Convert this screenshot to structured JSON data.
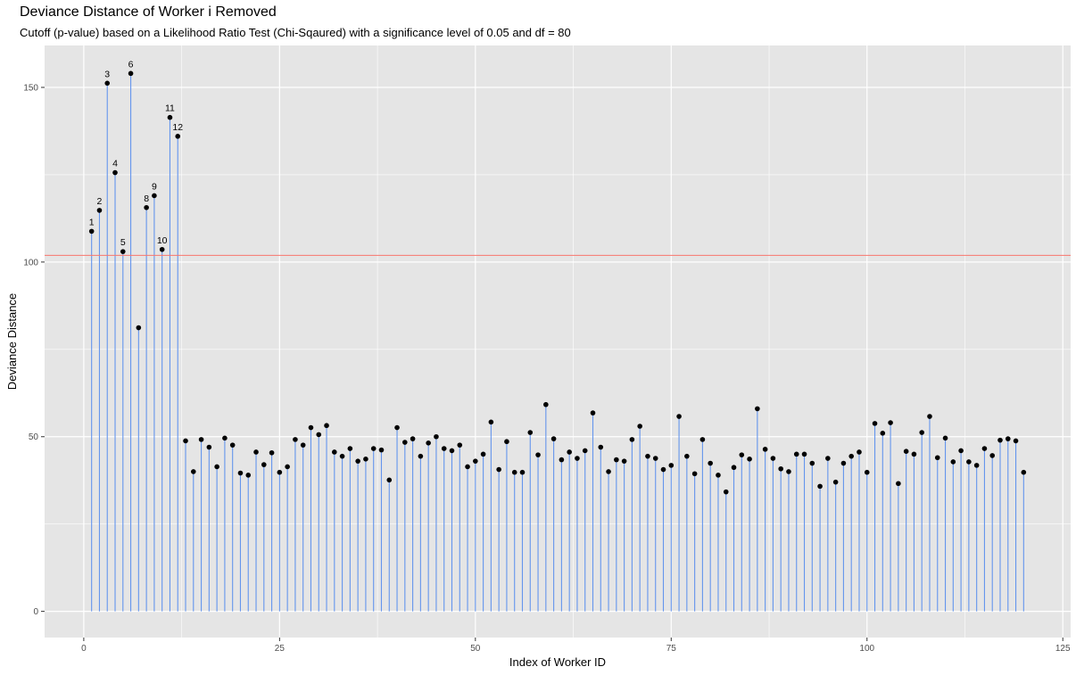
{
  "chart_data": {
    "type": "scatter",
    "title": "Deviance Distance of Worker i Removed",
    "subtitle": "Cutoff (p-value) based on a Likelihood Ratio Test (Chi-Sqaured) with a significance level of 0.05 and df = 80",
    "xlabel": "Index of Worker ID",
    "ylabel": "Deviance Distance",
    "xlim": [
      -5,
      126
    ],
    "ylim": [
      -7.5,
      162
    ],
    "x_ticks": [
      0,
      25,
      50,
      75,
      100,
      125
    ],
    "y_ticks": [
      0,
      50,
      100,
      150
    ],
    "cutoff": 101.9,
    "colors": {
      "panel": "#e5e5e5",
      "grid": "#ffffff",
      "segment": "#6495ed",
      "point": "#000000",
      "cutoff": "#f8766d"
    },
    "x": [
      1,
      2,
      3,
      4,
      5,
      6,
      7,
      8,
      9,
      10,
      11,
      12,
      13,
      14,
      15,
      16,
      17,
      18,
      19,
      20,
      21,
      22,
      23,
      24,
      25,
      26,
      27,
      28,
      29,
      30,
      31,
      32,
      33,
      34,
      35,
      36,
      37,
      38,
      39,
      40,
      41,
      42,
      43,
      44,
      45,
      46,
      47,
      48,
      49,
      50,
      51,
      52,
      53,
      54,
      55,
      56,
      57,
      58,
      59,
      60,
      61,
      62,
      63,
      64,
      65,
      66,
      67,
      68,
      69,
      70,
      71,
      72,
      73,
      74,
      75,
      76,
      77,
      78,
      79,
      80,
      81,
      82,
      83,
      84,
      85,
      86,
      87,
      88,
      89,
      90,
      91,
      92,
      93,
      94,
      95,
      96,
      97,
      98,
      99,
      100,
      101,
      102,
      103,
      104,
      105,
      106,
      107,
      108,
      109,
      110,
      111,
      112,
      113,
      114,
      115,
      116,
      117,
      118,
      119,
      120
    ],
    "y": [
      108.8,
      114.8,
      151.2,
      125.6,
      103.0,
      154.0,
      81.2,
      115.6,
      119.0,
      103.6,
      141.4,
      136.0,
      48.8,
      40.0,
      49.2,
      47.0,
      41.4,
      49.6,
      47.6,
      39.6,
      39.0,
      45.6,
      42.0,
      45.4,
      39.8,
      41.4,
      49.2,
      47.6,
      52.6,
      50.6,
      53.2,
      45.6,
      44.4,
      46.6,
      43.0,
      43.6,
      46.6,
      46.2,
      37.6,
      52.6,
      48.4,
      49.4,
      44.4,
      48.2,
      50.0,
      46.6,
      46.0,
      47.6,
      41.4,
      43.0,
      45.0,
      54.2,
      40.6,
      48.6,
      39.8,
      39.8,
      51.2,
      44.8,
      59.2,
      49.4,
      43.4,
      45.6,
      43.8,
      46.0,
      56.8,
      47.0,
      40.0,
      43.4,
      43.0,
      49.2,
      53.0,
      44.4,
      43.8,
      40.6,
      41.8,
      55.8,
      44.4,
      39.4,
      49.2,
      42.4,
      39.0,
      34.2,
      41.2,
      44.8,
      43.6,
      58.0,
      46.4,
      43.8,
      40.8,
      40.0,
      45.0,
      45.0,
      42.4,
      35.8,
      43.8,
      37.0,
      42.4,
      44.4,
      45.6,
      39.8,
      53.8,
      51.0,
      54.0,
      36.6,
      45.8,
      45.0,
      51.2,
      55.8,
      44.0,
      49.6,
      42.8,
      46.0,
      42.8,
      41.8,
      46.6,
      44.6,
      49.0,
      49.4,
      48.8,
      39.8
    ],
    "point_labels": [
      {
        "x": 1,
        "y": 108.8,
        "text": "1"
      },
      {
        "x": 2,
        "y": 114.8,
        "text": "2"
      },
      {
        "x": 3,
        "y": 151.2,
        "text": "3"
      },
      {
        "x": 4,
        "y": 125.6,
        "text": "4"
      },
      {
        "x": 5,
        "y": 103.0,
        "text": "5"
      },
      {
        "x": 6,
        "y": 154.0,
        "text": "6"
      },
      {
        "x": 8,
        "y": 115.6,
        "text": "8"
      },
      {
        "x": 9,
        "y": 119.0,
        "text": "9"
      },
      {
        "x": 10,
        "y": 103.6,
        "text": "10"
      },
      {
        "x": 11,
        "y": 141.4,
        "text": "11"
      },
      {
        "x": 12,
        "y": 136.0,
        "text": "12"
      }
    ],
    "grid": true,
    "legend": "none"
  }
}
